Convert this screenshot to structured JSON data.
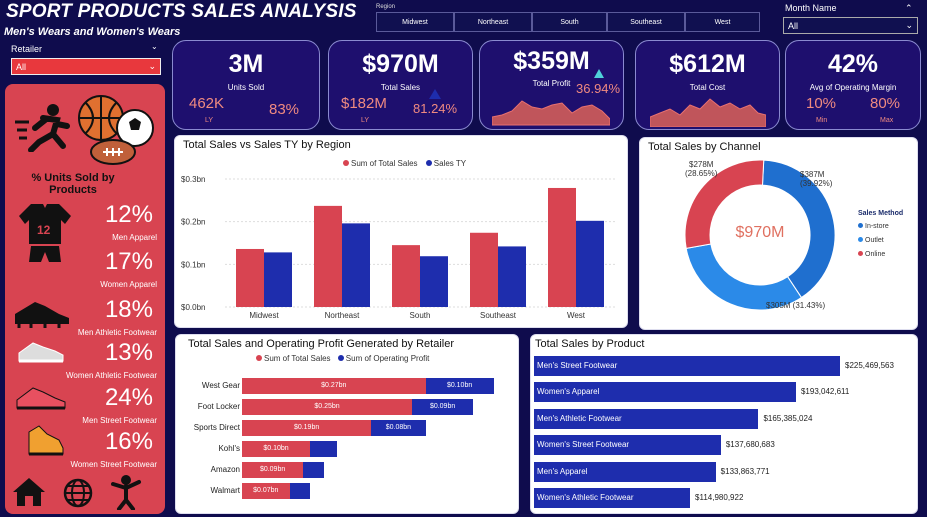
{
  "header": {
    "title": "SPORT PRODUCTS SALES ANALYSIS",
    "subtitle": "Men's Wears and Women's Wears"
  },
  "region_filter": {
    "label": "Region",
    "options": [
      "Midwest",
      "Northeast",
      "South",
      "Southeast",
      "West"
    ]
  },
  "month_filter": {
    "label": "Month Name",
    "value": "All"
  },
  "retailer_filter": {
    "label": "Retailer",
    "value": "All"
  },
  "kpis": {
    "units": {
      "value": "3M",
      "label": "Units Sold",
      "ly": "462K",
      "ly_tag": "LY",
      "pct": "83%"
    },
    "sales": {
      "value": "$970M",
      "label": "Total Sales",
      "ly": "$182M",
      "ly_tag": "LY",
      "pct": "81.24%"
    },
    "profit": {
      "value": "$359M",
      "label": "Total Profit",
      "pct": "36.94%"
    },
    "cost": {
      "value": "$612M",
      "label": "Total Cost"
    },
    "margin": {
      "value": "42%",
      "label": "Avg of Operating Margin",
      "min": "10%",
      "min_tag": "Min",
      "max": "80%",
      "max_tag": "Max"
    }
  },
  "units_by_product": {
    "title": "% Units Sold by Products",
    "items": [
      {
        "pct": "12%",
        "label": "Men Apparel"
      },
      {
        "pct": "17%",
        "label": "Women Apparel"
      },
      {
        "pct": "18%",
        "label": "Men Athletic Footwear"
      },
      {
        "pct": "13%",
        "label": "Women Athletic Footwear"
      },
      {
        "pct": "24%",
        "label": "Men Street Footwear"
      },
      {
        "pct": "16%",
        "label": "Women Street Footwear"
      }
    ]
  },
  "colors": {
    "red": "#d84451",
    "blue": "#1e2dad",
    "navy": "#0f0c4d",
    "light_blue": "#2b8ae8"
  },
  "chart_data": [
    {
      "type": "bar",
      "title": "Total Sales vs Sales TY by Region",
      "categories": [
        "Midwest",
        "Northeast",
        "South",
        "Southeast",
        "West"
      ],
      "series": [
        {
          "name": "Sum of Total Sales",
          "values": [
            0.136,
            0.237,
            0.145,
            0.174,
            0.279
          ]
        },
        {
          "name": "Sales TY",
          "values": [
            0.128,
            0.196,
            0.119,
            0.142,
            0.202
          ]
        }
      ],
      "yticks": [
        "$0.0bn",
        "$0.1bn",
        "$0.2bn",
        "$0.3bn"
      ],
      "ylim": [
        0,
        0.3
      ]
    },
    {
      "type": "pie",
      "title": "Total Sales by Channel",
      "center_label": "$970M",
      "legend_title": "Sales Method",
      "slices": [
        {
          "name": "In-store",
          "value": 387,
          "label": "$387M",
          "pct": "(39.92%)"
        },
        {
          "name": "Outlet",
          "value": 305,
          "label": "$305M (31.43%)"
        },
        {
          "name": "Online",
          "value": 278,
          "label": "$278M",
          "pct": "(28.65%)"
        }
      ]
    },
    {
      "type": "bar",
      "title": "Total Sales and Operating Profit Generated by Retailer",
      "categories": [
        "West Gear",
        "Foot Locker",
        "Sports Direct",
        "Kohl's",
        "Amazon",
        "Walmart"
      ],
      "series": [
        {
          "name": "Sum of Total Sales",
          "values": [
            0.27,
            0.25,
            0.19,
            0.1,
            0.09,
            0.07
          ],
          "labels": [
            "$0.27bn",
            "$0.25bn",
            "$0.19bn",
            "$0.10bn",
            "$0.09bn",
            "$0.07bn"
          ]
        },
        {
          "name": "Sum of Operating Profit",
          "values": [
            0.1,
            0.09,
            0.08,
            0.04,
            0.03,
            0.03
          ],
          "labels": [
            "$0.10bn",
            "$0.09bn",
            "$0.08bn",
            "",
            "",
            ""
          ]
        }
      ]
    },
    {
      "type": "bar",
      "title": "Total Sales by Product",
      "categories": [
        "Men's Street Footwear",
        "Women's Apparel",
        "Men's Athletic Footwear",
        "Women's Street Footwear",
        "Men's Apparel",
        "Women's Athletic Footwear"
      ],
      "values": [
        225469563,
        193042611,
        165385024,
        137680683,
        133863771,
        114980922
      ],
      "labels": [
        "$225,469,563",
        "$193,042,611",
        "$165,385,024",
        "$137,680,683",
        "$133,863,771",
        "$114,980,922"
      ]
    }
  ]
}
